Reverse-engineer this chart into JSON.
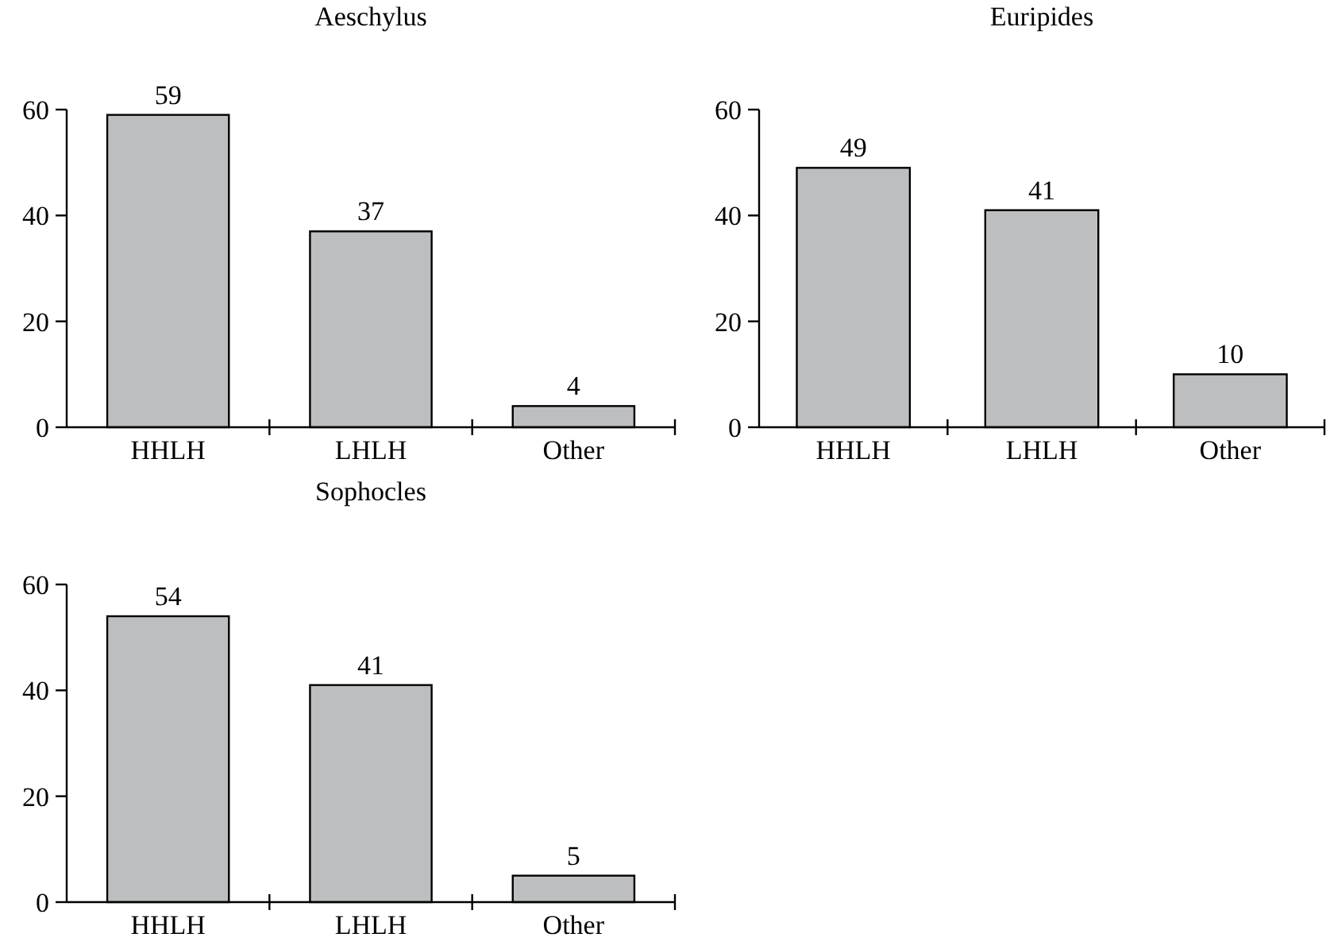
{
  "chart_data": [
    {
      "type": "bar",
      "title": "Aeschylus",
      "categories": [
        "HHLH",
        "LHLH",
        "Other"
      ],
      "values": [
        59,
        37,
        4
      ],
      "color": "#bcbec0",
      "ylim": [
        0,
        60
      ],
      "yticks": [
        0,
        20,
        40,
        60
      ],
      "data_labels": true
    },
    {
      "type": "bar",
      "title": "Euripides",
      "categories": [
        "HHLH",
        "LHLH",
        "Other"
      ],
      "values": [
        49,
        41,
        10
      ],
      "color": "#bcbec0",
      "ylim": [
        0,
        60
      ],
      "yticks": [
        0,
        20,
        40,
        60
      ],
      "data_labels": true
    },
    {
      "type": "bar",
      "title": "Sophocles",
      "categories": [
        "HHLH",
        "LHLH",
        "Other"
      ],
      "values": [
        54,
        41,
        5
      ],
      "color": "#bcbec0",
      "ylim": [
        0,
        60
      ],
      "yticks": [
        0,
        20,
        40,
        60
      ],
      "data_labels": true
    }
  ]
}
